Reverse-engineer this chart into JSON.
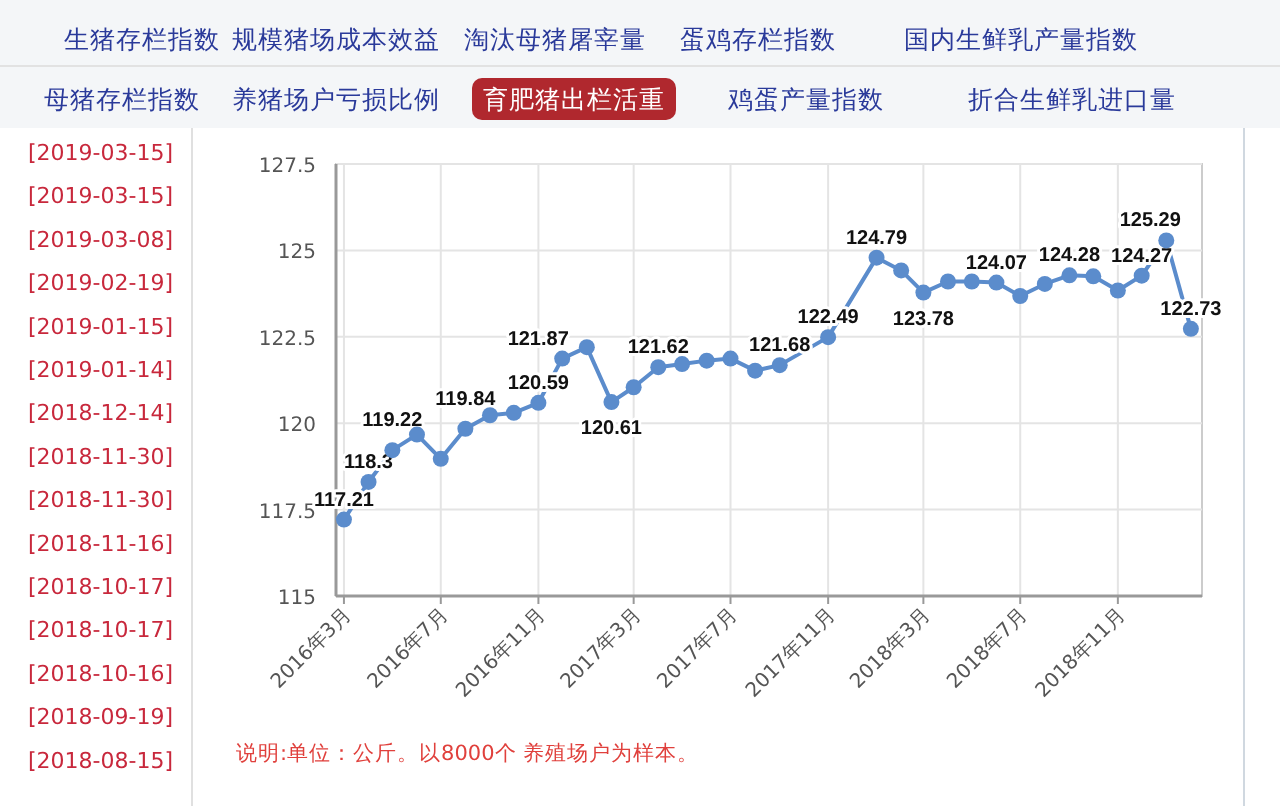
{
  "chart_data": [
    {
      "type": "line",
      "title": "育肥猪出栏活重",
      "x": [
        "2016-03",
        "2016-04",
        "2016-05",
        "2016-06",
        "2016-07",
        "2016-08",
        "2016-09",
        "2016-10",
        "2016-11",
        "2016-12",
        "2017-01",
        "2017-02",
        "2017-03",
        "2017-04",
        "2017-05",
        "2017-06",
        "2017-07",
        "2017-08",
        "2017-09",
        "2017-11",
        "2018-01",
        "2018-02",
        "2018-03",
        "2018-04",
        "2018-05",
        "2018-06",
        "2018-07",
        "2018-08",
        "2018-09",
        "2018-10",
        "2018-11",
        "2018-12",
        "2019-01",
        "2019-02"
      ],
      "series": [
        {
          "color": "#5b8ccc",
          "values": [
            117.21,
            118.3,
            119.22,
            119.67,
            118.97,
            119.84,
            120.23,
            120.3,
            120.59,
            121.87,
            122.2,
            120.61,
            121.04,
            121.62,
            121.71,
            121.81,
            121.87,
            121.52,
            121.68,
            122.49,
            124.79,
            124.42,
            123.78,
            124.1,
            124.1,
            124.07,
            123.68,
            124.03,
            124.28,
            124.25,
            123.84,
            124.27,
            125.29,
            122.73
          ],
          "value_labels": [
            "117.21",
            "118.3",
            "119.22",
            null,
            null,
            "119.84",
            null,
            null,
            "120.59",
            "121.87",
            null,
            "120.61",
            null,
            "121.62",
            null,
            null,
            null,
            null,
            "121.68",
            "122.49",
            "124.79",
            null,
            "123.78",
            null,
            null,
            "124.07",
            null,
            null,
            "124.28",
            null,
            null,
            "124.27",
            "125.29",
            "122.73"
          ]
        }
      ],
      "xlim": [
        "2016-02-20",
        "2019-02-15"
      ],
      "xticks": [
        {
          "value": "2016-03",
          "label": "2016年3月"
        },
        {
          "value": "2016-07",
          "label": "2016年7月"
        },
        {
          "value": "2016-11",
          "label": "2016年11月"
        },
        {
          "value": "2017-03",
          "label": "2017年3月"
        },
        {
          "value": "2017-07",
          "label": "2017年7月"
        },
        {
          "value": "2017-11",
          "label": "2017年11月"
        },
        {
          "value": "2018-03",
          "label": "2018年3月"
        },
        {
          "value": "2018-07",
          "label": "2018年7月"
        },
        {
          "value": "2018-11",
          "label": "2018年11月"
        }
      ],
      "ylim": [
        115,
        127.5
      ],
      "yticks": [
        115,
        117.5,
        120,
        122.5,
        125,
        127.5
      ],
      "grid": true,
      "marker": "circle",
      "annotations": [
        "说明:单位：公斤。以8000个 养殖场户为样本。"
      ]
    },
    {
      "type": "other",
      "annotations": [
        "生猪存栏指数",
        "规模猪场成本效益",
        "淘汰母猪屠宰量",
        "蛋鸡存栏指数",
        "国内生鲜乳产量指数",
        "母猪存栏指数",
        "养猪场户亏损比例",
        "鸡蛋产量指数",
        "折合生鲜乳进口量"
      ]
    },
    {
      "type": "other",
      "annotations": [
        "[2019-03-15]",
        "[2019-03-15]",
        "[2019-03-08]",
        "[2019-02-19]",
        "[2019-01-15]",
        "[2019-01-14]",
        "[2018-12-14]",
        "[2018-11-30]",
        "[2018-11-30]",
        "[2018-11-16]",
        "[2018-10-17]",
        "[2018-10-17]",
        "[2018-10-16]",
        "[2018-09-19]",
        "[2018-08-15]"
      ]
    }
  ]
}
